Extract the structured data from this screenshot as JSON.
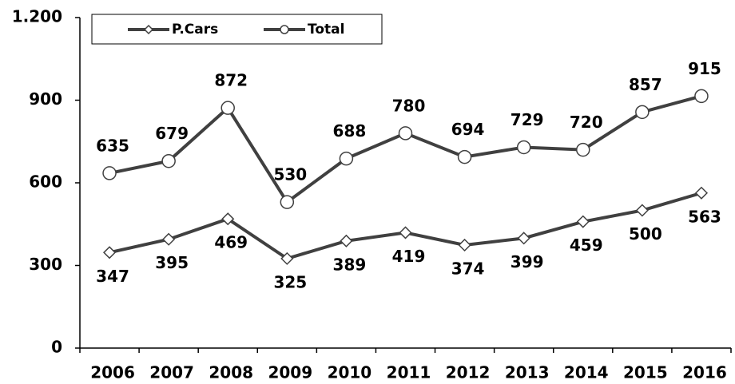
{
  "chart_data": {
    "type": "line",
    "categories": [
      "2006",
      "2007",
      "2008",
      "2009",
      "2010",
      "2011",
      "2012",
      "2013",
      "2014",
      "2015",
      "2016"
    ],
    "series": [
      {
        "name": "P.Cars",
        "color": "#404040",
        "marker": "diamond",
        "values": [
          347,
          395,
          469,
          325,
          389,
          419,
          374,
          399,
          459,
          500,
          563
        ]
      },
      {
        "name": "Total",
        "color": "#404040",
        "marker": "circle",
        "values": [
          635,
          679,
          872,
          530,
          688,
          780,
          694,
          729,
          720,
          857,
          915
        ]
      }
    ],
    "ylim": [
      0,
      1200
    ],
    "yticks": [
      0,
      300,
      600,
      900,
      {
        "value": 1200,
        "label": "1.200"
      }
    ],
    "grid": false,
    "legend": "top-left"
  }
}
